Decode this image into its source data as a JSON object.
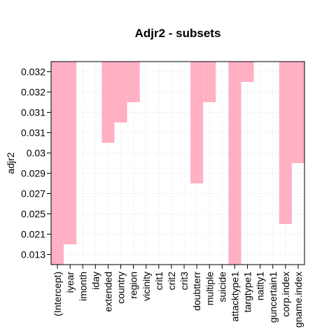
{
  "chart_data": {
    "type": "heatmap",
    "title": "Adjr2 - subsets",
    "ylabel": "adjr2",
    "xlabel": "",
    "grid": true,
    "fill_color": "#FFB0C3",
    "variables": [
      "(Intercept)",
      "iyear",
      "imonth",
      "iday",
      "extended",
      "country",
      "region",
      "vicinity",
      "crit1",
      "crit2",
      "crit3",
      "doubtterr",
      "multiple",
      "suicide",
      "attacktype1",
      "targtype1",
      "natlty1",
      "guncertain1",
      "corp.index",
      "gname.index"
    ],
    "row_labels": [
      "0.013",
      "0.021",
      "0.025",
      "0.027",
      "0.029",
      "0.03",
      "0.031",
      "0.031",
      "0.032",
      "0.032"
    ],
    "rows_included_from": [
      0,
      1,
      null,
      null,
      6,
      7,
      8,
      null,
      null,
      null,
      null,
      4,
      8,
      null,
      0,
      9,
      null,
      null,
      2,
      5
    ]
  }
}
